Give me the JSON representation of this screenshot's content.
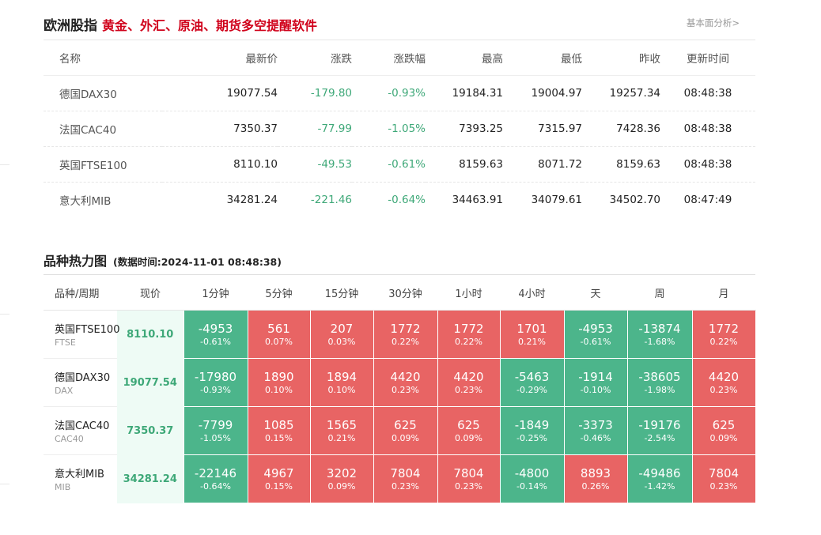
{
  "header": {
    "title": "欧洲股指",
    "promo": "黄金、外汇、原油、期货多空提醒软件",
    "more_link": "基本面分析>"
  },
  "quotes": {
    "columns": [
      "名称",
      "最新价",
      "涨跌",
      "涨跌幅",
      "最高",
      "最低",
      "昨收",
      "更新时间"
    ],
    "rows": [
      {
        "name": "德国DAX30",
        "last": "19077.54",
        "change": "-179.80",
        "pct": "-0.93%",
        "high": "19184.31",
        "low": "19004.97",
        "prev": "19257.34",
        "time": "08:48:38"
      },
      {
        "name": "法国CAC40",
        "last": "7350.37",
        "change": "-77.99",
        "pct": "-1.05%",
        "high": "7393.25",
        "low": "7315.97",
        "prev": "7428.36",
        "time": "08:48:38"
      },
      {
        "name": "英国FTSE100",
        "last": "8110.10",
        "change": "-49.53",
        "pct": "-0.61%",
        "high": "8159.63",
        "low": "8071.72",
        "prev": "8159.63",
        "time": "08:48:38"
      },
      {
        "name": "意大利MIB",
        "last": "34281.24",
        "change": "-221.46",
        "pct": "-0.64%",
        "high": "34463.91",
        "low": "34079.61",
        "prev": "34502.70",
        "time": "08:47:49"
      }
    ]
  },
  "heatmap": {
    "title": "品种热力图",
    "subtitle": "(数据时间:2024-11-01 08:48:38)",
    "columns": [
      "品种/周期",
      "现价",
      "1分钟",
      "5分钟",
      "15分钟",
      "30分钟",
      "1小时",
      "4小时",
      "天",
      "周",
      "月"
    ],
    "colors": {
      "up": "#e86464",
      "down": "#4cb58b",
      "price_bg": "#eefbf5",
      "price_text": "#3ea878"
    },
    "rows": [
      {
        "name": "英国FTSE100",
        "symbol": "FTSE",
        "price": "8110.10",
        "cells": [
          {
            "v": "-4953",
            "p": "-0.61%",
            "dir": "dn"
          },
          {
            "v": "561",
            "p": "0.07%",
            "dir": "up"
          },
          {
            "v": "207",
            "p": "0.03%",
            "dir": "up"
          },
          {
            "v": "1772",
            "p": "0.22%",
            "dir": "up"
          },
          {
            "v": "1772",
            "p": "0.22%",
            "dir": "up"
          },
          {
            "v": "1701",
            "p": "0.21%",
            "dir": "up"
          },
          {
            "v": "-4953",
            "p": "-0.61%",
            "dir": "dn"
          },
          {
            "v": "-13874",
            "p": "-1.68%",
            "dir": "dn"
          },
          {
            "v": "1772",
            "p": "0.22%",
            "dir": "up"
          }
        ]
      },
      {
        "name": "德国DAX30",
        "symbol": "DAX",
        "price": "19077.54",
        "cells": [
          {
            "v": "-17980",
            "p": "-0.93%",
            "dir": "dn"
          },
          {
            "v": "1890",
            "p": "0.10%",
            "dir": "up"
          },
          {
            "v": "1894",
            "p": "0.10%",
            "dir": "up"
          },
          {
            "v": "4420",
            "p": "0.23%",
            "dir": "up"
          },
          {
            "v": "4420",
            "p": "0.23%",
            "dir": "up"
          },
          {
            "v": "-5463",
            "p": "-0.29%",
            "dir": "dn"
          },
          {
            "v": "-1914",
            "p": "-0.10%",
            "dir": "dn"
          },
          {
            "v": "-38605",
            "p": "-1.98%",
            "dir": "dn"
          },
          {
            "v": "4420",
            "p": "0.23%",
            "dir": "up"
          }
        ]
      },
      {
        "name": "法国CAC40",
        "symbol": "CAC40",
        "price": "7350.37",
        "cells": [
          {
            "v": "-7799",
            "p": "-1.05%",
            "dir": "dn"
          },
          {
            "v": "1085",
            "p": "0.15%",
            "dir": "up"
          },
          {
            "v": "1565",
            "p": "0.21%",
            "dir": "up"
          },
          {
            "v": "625",
            "p": "0.09%",
            "dir": "up"
          },
          {
            "v": "625",
            "p": "0.09%",
            "dir": "up"
          },
          {
            "v": "-1849",
            "p": "-0.25%",
            "dir": "dn"
          },
          {
            "v": "-3373",
            "p": "-0.46%",
            "dir": "dn"
          },
          {
            "v": "-19176",
            "p": "-2.54%",
            "dir": "dn"
          },
          {
            "v": "625",
            "p": "0.09%",
            "dir": "up"
          }
        ]
      },
      {
        "name": "意大利MIB",
        "symbol": "MIB",
        "price": "34281.24",
        "cells": [
          {
            "v": "-22146",
            "p": "-0.64%",
            "dir": "dn"
          },
          {
            "v": "4967",
            "p": "0.15%",
            "dir": "up"
          },
          {
            "v": "3202",
            "p": "0.09%",
            "dir": "up"
          },
          {
            "v": "7804",
            "p": "0.23%",
            "dir": "up"
          },
          {
            "v": "7804",
            "p": "0.23%",
            "dir": "up"
          },
          {
            "v": "-4800",
            "p": "-0.14%",
            "dir": "dn"
          },
          {
            "v": "8893",
            "p": "0.26%",
            "dir": "up"
          },
          {
            "v": "-49486",
            "p": "-1.42%",
            "dir": "dn"
          },
          {
            "v": "7804",
            "p": "0.23%",
            "dir": "up"
          }
        ]
      }
    ]
  }
}
